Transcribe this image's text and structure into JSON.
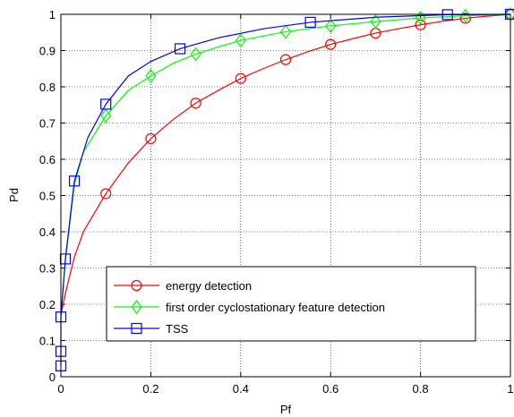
{
  "chart_data": {
    "type": "line",
    "title": "",
    "xlabel": "Pf",
    "ylabel": "Pd",
    "xlim": [
      0,
      1
    ],
    "ylim": [
      0,
      1
    ],
    "x_ticks": [
      0,
      0.2,
      0.4,
      0.6,
      0.8,
      1
    ],
    "x_tick_labels": [
      "0",
      "0.2",
      "0.4",
      "0.6",
      "0.8",
      "1"
    ],
    "y_ticks": [
      0,
      0.1,
      0.2,
      0.3,
      0.4,
      0.5,
      0.6,
      0.7,
      0.8,
      0.9,
      1
    ],
    "y_tick_labels": [
      "0",
      "0.1",
      "0.2",
      "0.3",
      "0.4",
      "0.5",
      "0.6",
      "0.7",
      "0.8",
      "0.9",
      "1"
    ],
    "grid": true,
    "legend_position": "bottom-center",
    "series": [
      {
        "name": "energy detection",
        "color": "#ff0000",
        "marker": "circle",
        "x": [
          0,
          0.01,
          0.03,
          0.05,
          0.1,
          0.15,
          0.2,
          0.25,
          0.3,
          0.35,
          0.4,
          0.45,
          0.5,
          0.55,
          0.6,
          0.65,
          0.7,
          0.75,
          0.8,
          0.85,
          0.9,
          0.95,
          1
        ],
        "y": [
          0.17,
          0.23,
          0.33,
          0.4,
          0.505,
          0.59,
          0.657,
          0.71,
          0.755,
          0.79,
          0.823,
          0.85,
          0.875,
          0.897,
          0.917,
          0.933,
          0.948,
          0.96,
          0.971,
          0.981,
          0.989,
          0.995,
          1
        ],
        "marker_x": [
          0.1,
          0.2,
          0.3,
          0.4,
          0.5,
          0.6,
          0.7,
          0.8,
          0.9,
          1
        ],
        "marker_y": [
          0.505,
          0.657,
          0.755,
          0.823,
          0.875,
          0.917,
          0.948,
          0.971,
          0.989,
          1
        ]
      },
      {
        "name": "first order cyclostationary feature detection",
        "color": "#00ff00",
        "marker": "diamond",
        "x": [
          0,
          0.01,
          0.03,
          0.05,
          0.1,
          0.15,
          0.2,
          0.25,
          0.3,
          0.35,
          0.4,
          0.5,
          0.6,
          0.7,
          0.8,
          0.9,
          1
        ],
        "y": [
          0.17,
          0.32,
          0.53,
          0.62,
          0.72,
          0.79,
          0.83,
          0.865,
          0.89,
          0.91,
          0.928,
          0.952,
          0.968,
          0.98,
          0.99,
          0.996,
          1
        ],
        "marker_x": [
          0.1,
          0.2,
          0.3,
          0.4,
          0.5,
          0.6,
          0.7,
          0.8,
          0.9,
          1
        ],
        "marker_y": [
          0.72,
          0.83,
          0.89,
          0.928,
          0.952,
          0.968,
          0.98,
          0.99,
          0.996,
          1
        ]
      },
      {
        "name": "TSS",
        "color": "#0000ff",
        "marker": "square",
        "x": [
          0,
          0,
          0,
          0.01,
          0.03,
          0.06,
          0.1,
          0.15,
          0.2,
          0.265,
          0.35,
          0.45,
          0.555,
          0.7,
          0.86,
          1
        ],
        "y": [
          0.03,
          0.07,
          0.165,
          0.325,
          0.54,
          0.66,
          0.752,
          0.83,
          0.87,
          0.905,
          0.935,
          0.96,
          0.978,
          0.992,
          0.999,
          1
        ],
        "marker_x": [
          0,
          0,
          0,
          0.01,
          0.03,
          0.1,
          0.265,
          0.555,
          0.86,
          1
        ],
        "marker_y": [
          0.03,
          0.07,
          0.165,
          0.325,
          0.54,
          0.752,
          0.905,
          0.978,
          0.999,
          1
        ]
      }
    ]
  }
}
